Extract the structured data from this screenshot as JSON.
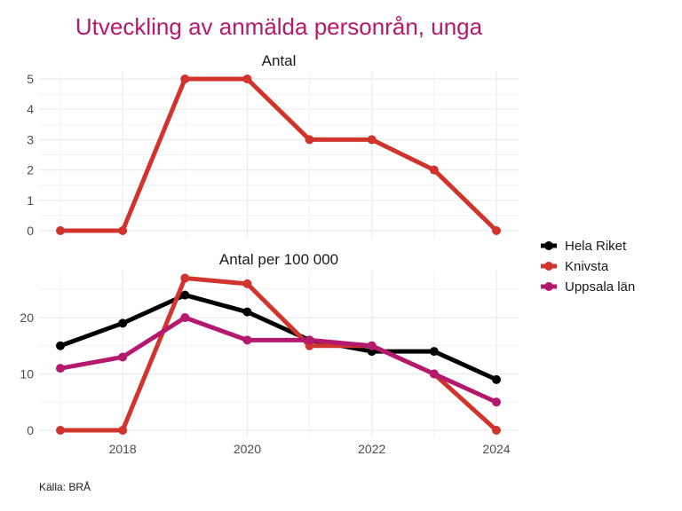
{
  "chart_data": {
    "type": "line",
    "title": "Utveckling av anmälda personrån, unga",
    "caption": "Källa: BRÅ",
    "x": [
      2017,
      2018,
      2019,
      2020,
      2021,
      2022,
      2023,
      2024
    ],
    "x_ticks": [
      2018,
      2020,
      2022,
      2024
    ],
    "legend": {
      "position": "right",
      "entries": [
        {
          "name": "Hela Riket",
          "color": "#000000"
        },
        {
          "name": "Knivsta",
          "color": "#D0342C"
        },
        {
          "name": "Uppsala län",
          "color": "#B5196E"
        }
      ]
    },
    "panels": [
      {
        "name": "Antal",
        "ylim": [
          0,
          5
        ],
        "y_ticks": [
          0,
          1,
          2,
          3,
          4,
          5
        ],
        "y_minor": [
          0.5,
          1.5,
          2.5,
          3.5,
          4.5
        ],
        "series": [
          {
            "name": "Knivsta",
            "color": "#D0342C",
            "values": [
              0,
              0,
              5,
              5,
              3,
              3,
              2,
              0
            ]
          }
        ]
      },
      {
        "name": "Antal per 100 000",
        "ylim": [
          0,
          27
        ],
        "y_ticks": [
          0,
          10,
          20
        ],
        "y_minor": [
          5,
          15,
          25
        ],
        "series": [
          {
            "name": "Hela Riket",
            "color": "#000000",
            "values": [
              15,
              19,
              24,
              21,
              16,
              14,
              14,
              9
            ]
          },
          {
            "name": "Knivsta",
            "color": "#D0342C",
            "values": [
              0,
              0,
              27,
              26,
              15,
              15,
              10,
              0
            ]
          },
          {
            "name": "Uppsala län",
            "color": "#B5196E",
            "values": [
              11,
              13,
              20,
              16,
              16,
              15,
              10,
              5
            ]
          }
        ]
      }
    ]
  }
}
